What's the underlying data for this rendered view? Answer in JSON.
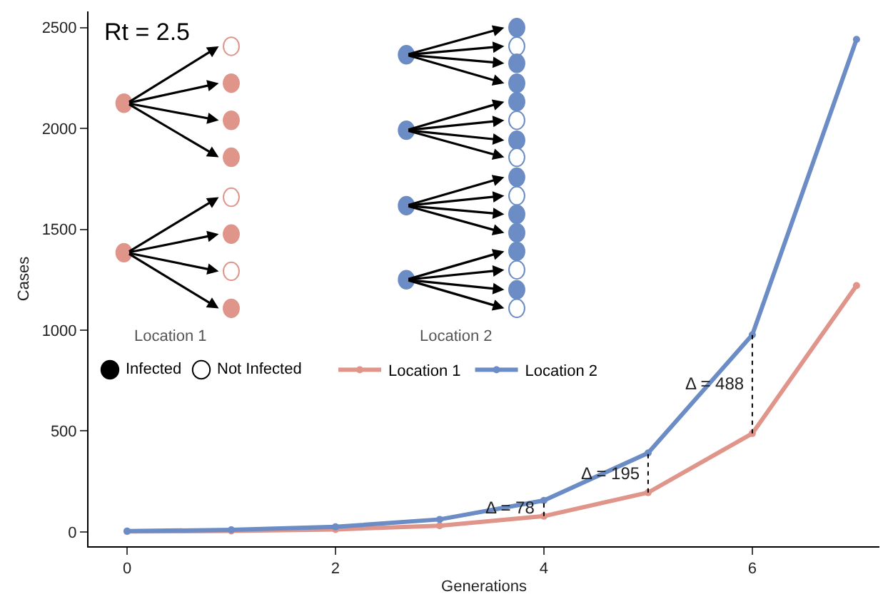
{
  "chart_data": {
    "type": "line",
    "xlabel": "Generations",
    "ylabel": "Cases",
    "x": [
      0,
      1,
      2,
      3,
      4,
      5,
      6,
      7
    ],
    "series": [
      {
        "name": "Location 1",
        "color": "#e0958b",
        "values": [
          2,
          5,
          12,
          31,
          78,
          195,
          488,
          1221
        ]
      },
      {
        "name": "Location 2",
        "color": "#6b8cc4",
        "values": [
          4,
          10,
          25,
          62,
          156,
          391,
          977,
          2441
        ]
      },
      {
        "x": [
          4,
          4
        ],
        "color": "#000000",
        "values": [
          78,
          156
        ],
        "line_style": "dotted",
        "marker": "none"
      },
      {
        "x": [
          5,
          5
        ],
        "color": "#000000",
        "values": [
          195,
          391
        ],
        "line_style": "dotted",
        "marker": "none"
      },
      {
        "x": [
          6,
          6
        ],
        "color": "#000000",
        "values": [
          488,
          977
        ],
        "line_style": "dotted",
        "marker": "none"
      }
    ],
    "annotations": [
      "Rt = 2.5",
      "Location 1",
      "Location 2",
      "Infected",
      "Not Infected",
      {
        "text": "Δ = 78",
        "x": 4,
        "y": 117
      },
      {
        "text": "Δ = 195",
        "x": 5,
        "y": 293
      },
      {
        "text": "Δ = 488",
        "x": 6,
        "y": 732
      }
    ],
    "xlim": [
      -0.37,
      7.22
    ],
    "ylim": [
      -71,
      2580
    ],
    "xticks": [
      0,
      2,
      4,
      6
    ],
    "yticks": [
      0,
      500,
      1000,
      1500,
      2000,
      2500
    ],
    "legend": "left",
    "marker": "circle",
    "line_style": "solid"
  }
}
